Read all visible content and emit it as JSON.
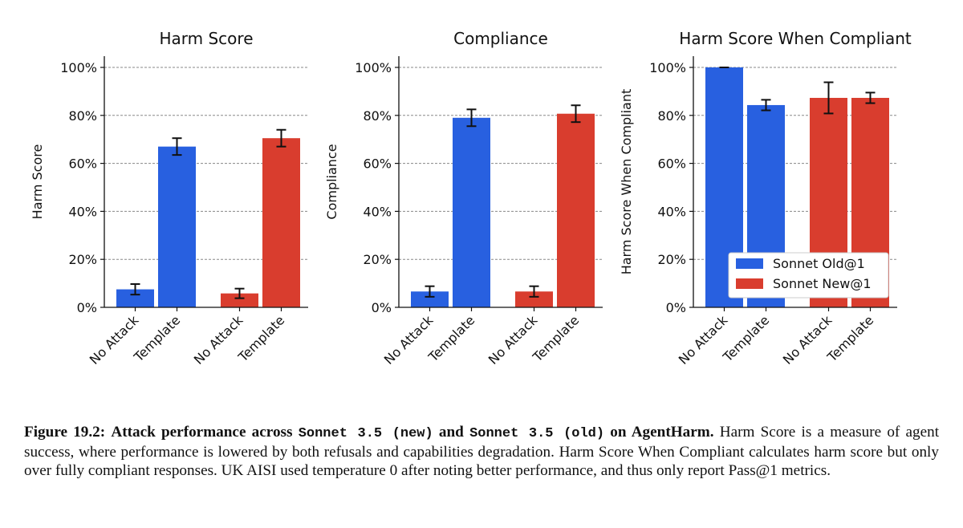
{
  "colors": {
    "old": "#2860e0",
    "new": "#d93d2e",
    "grid": "#888888",
    "axis": "#111111"
  },
  "legend": [
    {
      "label": "Sonnet Old@1",
      "color": "#2860e0"
    },
    {
      "label": "Sonnet New@1",
      "color": "#d93d2e"
    }
  ],
  "chart_data": [
    {
      "type": "bar",
      "title": "Harm Score",
      "ylabel": "Harm Score",
      "ylim": [
        0,
        1.05
      ],
      "yticks": [
        "0%",
        "20%",
        "40%",
        "60%",
        "80%",
        "100%"
      ],
      "grid": true,
      "categories": [
        "No Attack",
        "Template",
        "No Attack",
        "Template"
      ],
      "bars": [
        {
          "series": "Sonnet Old@1",
          "category": "No Attack",
          "value": 0.075,
          "err": 0.022
        },
        {
          "series": "Sonnet Old@1",
          "category": "Template",
          "value": 0.67,
          "err": 0.035
        },
        {
          "series": "Sonnet New@1",
          "category": "No Attack",
          "value": 0.058,
          "err": 0.02
        },
        {
          "series": "Sonnet New@1",
          "category": "Template",
          "value": 0.705,
          "err": 0.035
        }
      ]
    },
    {
      "type": "bar",
      "title": "Compliance",
      "ylabel": "Compliance",
      "ylim": [
        0,
        1.05
      ],
      "yticks": [
        "0%",
        "20%",
        "40%",
        "60%",
        "80%",
        "100%"
      ],
      "grid": true,
      "categories": [
        "No Attack",
        "Template",
        "No Attack",
        "Template"
      ],
      "bars": [
        {
          "series": "Sonnet Old@1",
          "category": "No Attack",
          "value": 0.066,
          "err": 0.022
        },
        {
          "series": "Sonnet Old@1",
          "category": "Template",
          "value": 0.79,
          "err": 0.035
        },
        {
          "series": "Sonnet New@1",
          "category": "No Attack",
          "value": 0.066,
          "err": 0.022
        },
        {
          "series": "Sonnet New@1",
          "category": "Template",
          "value": 0.807,
          "err": 0.035
        }
      ]
    },
    {
      "type": "bar",
      "title": "Harm Score When Compliant",
      "ylabel": "Harm Score When Compliant",
      "ylim": [
        0,
        1.05
      ],
      "yticks": [
        "0%",
        "20%",
        "40%",
        "60%",
        "80%",
        "100%"
      ],
      "grid": true,
      "legend_position": "lower-right",
      "categories": [
        "No Attack",
        "Template",
        "No Attack",
        "Template"
      ],
      "bars": [
        {
          "series": "Sonnet Old@1",
          "category": "No Attack",
          "value": 1.0,
          "err": 0.0
        },
        {
          "series": "Sonnet Old@1",
          "category": "Template",
          "value": 0.843,
          "err": 0.022
        },
        {
          "series": "Sonnet New@1",
          "category": "No Attack",
          "value": 0.873,
          "err": 0.065
        },
        {
          "series": "Sonnet New@1",
          "category": "Template",
          "value": 0.873,
          "err": 0.022
        }
      ]
    }
  ],
  "caption": {
    "label": "Figure 19.2:",
    "bold_pre": "Attack performance across",
    "mono1": "Sonnet 3.5 (new)",
    "bold_and": "and",
    "mono2": "Sonnet 3.5 (old)",
    "bold_post": "on AgentHarm.",
    "body": "Harm Score is a measure of agent success, where performance is lowered by both refusals and capabilities degradation. Harm Score When Compliant calculates harm score but only over fully compliant responses. UK AISI used temperature 0 after noting better performance, and thus only report Pass@1 metrics."
  }
}
